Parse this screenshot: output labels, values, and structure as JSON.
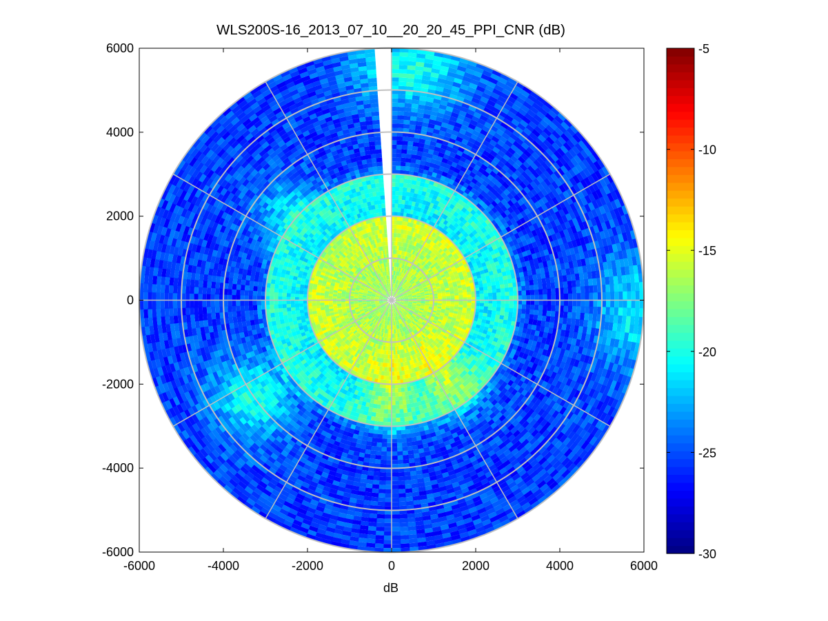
{
  "chart_data": {
    "type": "heatmap",
    "subtype": "polar-ppi",
    "title": "WLS200S-16_2013_07_10__20_20_45_PPI_CNR (dB)",
    "xlabel": "dB",
    "ylabel": "",
    "xlim": [
      -6000,
      6000
    ],
    "ylim": [
      -6000,
      6000
    ],
    "xticks": [
      "-6000",
      "-4000",
      "-2000",
      "0",
      "2000",
      "4000",
      "6000"
    ],
    "yticks": [
      "6000",
      "4000",
      "2000",
      "0",
      "-2000",
      "-4000",
      "-6000"
    ],
    "max_range": 6000,
    "range_rings": [
      1000,
      2000,
      3000,
      4000,
      5000,
      6000
    ],
    "spoke_angles_deg": [
      0,
      30,
      60,
      90,
      120,
      150,
      180,
      210,
      240,
      270,
      300,
      330
    ],
    "missing_sector_deg": [
      356,
      360
    ],
    "colorbar": {
      "label": "",
      "range": [
        -30,
        -5
      ],
      "ticks": [
        "-5",
        "-10",
        "-15",
        "-20",
        "-25",
        "-30"
      ],
      "colormap": "jet"
    },
    "field_description": [
      {
        "range": [
          0,
          2000
        ],
        "cnr_db": -17
      },
      {
        "range": [
          2000,
          3000
        ],
        "cnr_db": -21
      },
      {
        "range": [
          3000,
          6000
        ],
        "cnr_db": -25.5
      }
    ],
    "features": [
      {
        "label": "south enhancement",
        "azimuth_deg": 180,
        "range": 1900,
        "cnr_db": -16
      },
      {
        "label": "southeast enhancement",
        "azimuth_deg": 145,
        "range": 2000,
        "cnr_db": -16
      },
      {
        "label": "north beam streak",
        "azimuth_deg": 5,
        "range": 5500,
        "cnr_db": -20
      },
      {
        "label": "east beam streak",
        "azimuth_deg": 93,
        "range": 5800,
        "cnr_db": -21
      },
      {
        "label": "west-southwest arc",
        "azimuth_deg": 235,
        "range": 4000,
        "cnr_db": -20
      },
      {
        "label": "northwest arc",
        "azimuth_deg": 310,
        "range": 3000,
        "cnr_db": -21
      }
    ]
  }
}
